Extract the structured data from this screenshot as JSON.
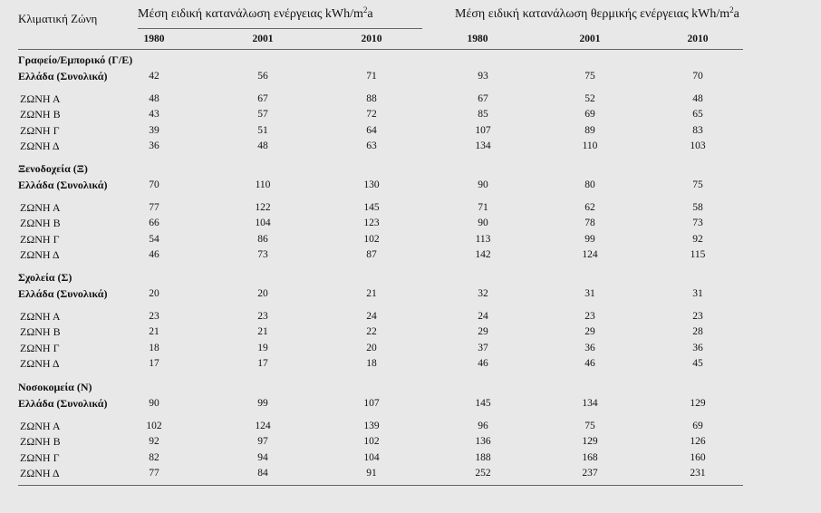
{
  "header": {
    "zone_col": "Κλιματική Ζώνη",
    "group1": "Μέση ειδική κατανάλωση ενέργειας kWh/m",
    "group1_sup": "2",
    "group1_suffix": "a",
    "group2": "Μέση ειδική κατανάλωση θερμικής ενέργειας kWh/m",
    "group2_sup": "2",
    "group2_suffix": "a",
    "years": [
      "1980",
      "2001",
      "2010",
      "1980",
      "2001",
      "2010"
    ]
  },
  "sections": [
    {
      "title": "Γραφείο/Εμπορικό (Γ/Ε)",
      "rows": [
        {
          "label": "Ελλάδα (Συνολικά)",
          "values": [
            "42",
            "56",
            "71",
            "93",
            "75",
            "70"
          ]
        },
        {
          "label": "ΖΩΝΗ Α",
          "values": [
            "48",
            "67",
            "88",
            "67",
            "52",
            "48"
          ]
        },
        {
          "label": "ΖΩΝΗ Β",
          "values": [
            "43",
            "57",
            "72",
            "85",
            "69",
            "65"
          ]
        },
        {
          "label": "ΖΩΝΗ Γ",
          "values": [
            "39",
            "51",
            "64",
            "107",
            "89",
            "83"
          ]
        },
        {
          "label": "ΖΩΝΗ Δ",
          "values": [
            "36",
            "48",
            "63",
            "134",
            "110",
            "103"
          ]
        }
      ]
    },
    {
      "title": "Ξενοδοχεία (Ξ)",
      "rows": [
        {
          "label": "Ελλάδα (Συνολικά)",
          "values": [
            "70",
            "110",
            "130",
            "90",
            "80",
            "75"
          ]
        },
        {
          "label": "ΖΩΝΗ Α",
          "values": [
            "77",
            "122",
            "145",
            "71",
            "62",
            "58"
          ]
        },
        {
          "label": "ΖΩΝΗ Β",
          "values": [
            "66",
            "104",
            "123",
            "90",
            "78",
            "73"
          ]
        },
        {
          "label": "ΖΩΝΗ Γ",
          "values": [
            "54",
            "86",
            "102",
            "113",
            "99",
            "92"
          ]
        },
        {
          "label": "ΖΩΝΗ Δ",
          "values": [
            "46",
            "73",
            "87",
            "142",
            "124",
            "115"
          ]
        }
      ]
    },
    {
      "title": "Σχολεία (Σ)",
      "rows": [
        {
          "label": "Ελλάδα (Συνολικά)",
          "values": [
            "20",
            "20",
            "21",
            "32",
            "31",
            "31"
          ]
        },
        {
          "label": "ΖΩΝΗ Α",
          "values": [
            "23",
            "23",
            "24",
            "24",
            "23",
            "23"
          ]
        },
        {
          "label": "ΖΩΝΗ Β",
          "values": [
            "21",
            "21",
            "22",
            "29",
            "29",
            "28"
          ]
        },
        {
          "label": "ΖΩΝΗ Γ",
          "values": [
            "18",
            "19",
            "20",
            "37",
            "36",
            "36"
          ]
        },
        {
          "label": "ΖΩΝΗ Δ",
          "values": [
            "17",
            "17",
            "18",
            "46",
            "46",
            "45"
          ]
        }
      ]
    },
    {
      "title": "Νοσοκομεία (Ν)",
      "rows": [
        {
          "label": "Ελλάδα (Συνολικά)",
          "values": [
            "90",
            "99",
            "107",
            "145",
            "134",
            "129"
          ]
        },
        {
          "label": "ΖΩΝΗ Α",
          "values": [
            "102",
            "124",
            "139",
            "96",
            "75",
            "69"
          ]
        },
        {
          "label": "ΖΩΝΗ Β",
          "values": [
            "92",
            "97",
            "102",
            "136",
            "129",
            "126"
          ]
        },
        {
          "label": "ΖΩΝΗ Γ",
          "values": [
            "82",
            "94",
            "104",
            "188",
            "168",
            "160"
          ]
        },
        {
          "label": "ΖΩΝΗ Δ",
          "values": [
            "77",
            "84",
            "91",
            "252",
            "237",
            "231"
          ]
        }
      ]
    }
  ]
}
